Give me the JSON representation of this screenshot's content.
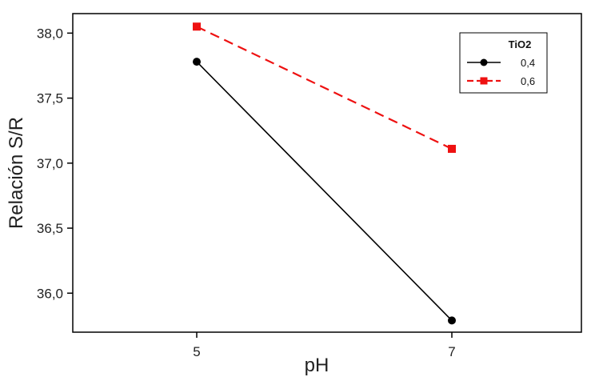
{
  "chart_data": {
    "type": "line",
    "title": "",
    "xlabel": "pH",
    "ylabel": "Relación S/R",
    "categories": [
      "5",
      "7"
    ],
    "yticks": [
      "36,0",
      "36,5",
      "37,0",
      "37,5",
      "38,0"
    ],
    "ylim": [
      35.7,
      38.15
    ],
    "legend": {
      "title": "TiO2",
      "position": "top-right"
    },
    "grid": false,
    "series": [
      {
        "name": "0,4",
        "values": [
          37.78,
          35.79
        ],
        "color": "#000000",
        "marker": "circle",
        "dash": "solid"
      },
      {
        "name": "0,6",
        "values": [
          38.05,
          37.11
        ],
        "color": "#ee1111",
        "marker": "square",
        "dash": "dashed"
      }
    ]
  }
}
